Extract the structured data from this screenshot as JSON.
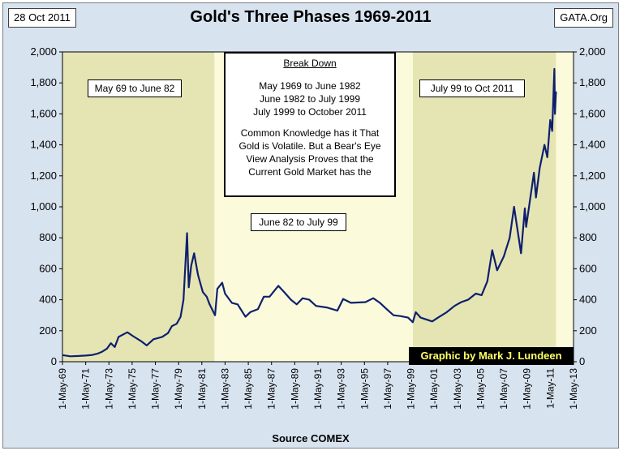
{
  "header": {
    "date": "28 Oct 2011",
    "source_site": "GATA.Org"
  },
  "footer": {
    "source": "Source COMEX"
  },
  "annotations": {
    "phase1": "May 69 to June 82",
    "phase2": "June 82 to July 99",
    "phase3": "July 99 to Oct 2011",
    "box_title": "Break Down",
    "box_lines": [
      "May 1969 to June 1982",
      "June 1982 to July 1999",
      "July 1999 to October 2011"
    ],
    "box_text": [
      "Common Knowledge has it That",
      "Gold is Volatile.  But a Bear's Eye",
      "View Analysis Proves that the",
      "Current Gold Market has the"
    ],
    "credit": "Graphic by Mark J. Lundeen"
  },
  "colors": {
    "plot_bg": "#fbfbdc",
    "shade": "#e5e5b4",
    "line": "#0f1f6e",
    "frame_bg": "#d8e3f0"
  },
  "chart_data": {
    "type": "line",
    "title": "Gold's Three Phases 1969-2011",
    "xlabel": "Source COMEX",
    "ylabel": "",
    "x_tick_labels": [
      "1-May-69",
      "1-May-71",
      "1-May-73",
      "1-May-75",
      "1-May-77",
      "1-May-79",
      "1-May-81",
      "1-May-83",
      "1-May-85",
      "1-May-87",
      "1-May-89",
      "1-May-91",
      "1-May-93",
      "1-May-95",
      "1-May-97",
      "1-May-99",
      "1-May-01",
      "1-May-03",
      "1-May-05",
      "1-May-07",
      "1-May-09",
      "1-May-11",
      "1-May-13"
    ],
    "y_tick_labels": [
      "0",
      "200",
      "400",
      "600",
      "800",
      "1,000",
      "1,200",
      "1,400",
      "1,600",
      "1,800",
      "2,000"
    ],
    "ylim": [
      0,
      2000
    ],
    "xlim": [
      "1969-05-01",
      "2013-05-01"
    ],
    "grid": false,
    "shaded_phases": [
      {
        "from": "1969-05-01",
        "to": "1982-06-01"
      },
      {
        "from": "1999-07-01",
        "to": "2011-10-28"
      }
    ],
    "series": [
      {
        "values": [
          [
            "1969-05-01",
            43
          ],
          [
            "1970-01-01",
            35
          ],
          [
            "1970-10-01",
            37
          ],
          [
            "1971-05-01",
            40
          ],
          [
            "1971-12-01",
            44
          ],
          [
            "1972-05-01",
            52
          ],
          [
            "1972-10-01",
            65
          ],
          [
            "1973-03-01",
            85
          ],
          [
            "1973-07-01",
            120
          ],
          [
            "1973-11-01",
            95
          ],
          [
            "1974-03-01",
            160
          ],
          [
            "1974-12-01",
            190
          ],
          [
            "1975-06-01",
            165
          ],
          [
            "1976-03-01",
            130
          ],
          [
            "1976-08-01",
            105
          ],
          [
            "1977-03-01",
            145
          ],
          [
            "1977-12-01",
            160
          ],
          [
            "1978-06-01",
            185
          ],
          [
            "1978-10-01",
            230
          ],
          [
            "1979-03-01",
            245
          ],
          [
            "1979-07-01",
            290
          ],
          [
            "1979-10-01",
            400
          ],
          [
            "1980-01-21",
            830
          ],
          [
            "1980-03-15",
            480
          ],
          [
            "1980-06-01",
            620
          ],
          [
            "1980-09-01",
            700
          ],
          [
            "1981-01-01",
            560
          ],
          [
            "1981-06-01",
            450
          ],
          [
            "1981-10-01",
            420
          ],
          [
            "1982-01-01",
            370
          ],
          [
            "1982-06-21",
            300
          ],
          [
            "1982-09-01",
            470
          ],
          [
            "1983-02-01",
            510
          ],
          [
            "1983-05-01",
            440
          ],
          [
            "1983-12-01",
            380
          ],
          [
            "1984-06-01",
            370
          ],
          [
            "1985-02-01",
            290
          ],
          [
            "1985-07-01",
            320
          ],
          [
            "1986-03-01",
            340
          ],
          [
            "1986-09-01",
            420
          ],
          [
            "1987-03-01",
            420
          ],
          [
            "1987-12-01",
            490
          ],
          [
            "1988-06-01",
            450
          ],
          [
            "1989-01-01",
            400
          ],
          [
            "1989-07-01",
            370
          ],
          [
            "1990-01-01",
            410
          ],
          [
            "1990-08-01",
            400
          ],
          [
            "1991-03-01",
            360
          ],
          [
            "1992-02-01",
            350
          ],
          [
            "1993-01-01",
            330
          ],
          [
            "1993-07-01",
            405
          ],
          [
            "1994-03-01",
            380
          ],
          [
            "1995-06-01",
            385
          ],
          [
            "1996-02-01",
            410
          ],
          [
            "1996-09-01",
            380
          ],
          [
            "1997-03-01",
            345
          ],
          [
            "1997-11-01",
            300
          ],
          [
            "1998-06-01",
            295
          ],
          [
            "1999-02-01",
            285
          ],
          [
            "1999-07-01",
            255
          ],
          [
            "1999-10-01",
            320
          ],
          [
            "2000-03-01",
            285
          ],
          [
            "2001-03-01",
            260
          ],
          [
            "2001-09-01",
            285
          ],
          [
            "2002-06-01",
            320
          ],
          [
            "2003-02-01",
            360
          ],
          [
            "2003-09-01",
            385
          ],
          [
            "2004-04-01",
            400
          ],
          [
            "2004-12-01",
            440
          ],
          [
            "2005-06-01",
            430
          ],
          [
            "2005-12-01",
            520
          ],
          [
            "2006-05-01",
            720
          ],
          [
            "2006-10-01",
            590
          ],
          [
            "2007-05-01",
            680
          ],
          [
            "2007-11-01",
            800
          ],
          [
            "2008-03-17",
            1000
          ],
          [
            "2008-10-24",
            700
          ],
          [
            "2009-02-20",
            990
          ],
          [
            "2009-04-01",
            870
          ],
          [
            "2009-12-03",
            1220
          ],
          [
            "2010-02-05",
            1060
          ],
          [
            "2010-06-01",
            1250
          ],
          [
            "2010-11-01",
            1400
          ],
          [
            "2011-01-28",
            1320
          ],
          [
            "2011-05-01",
            1560
          ],
          [
            "2011-07-01",
            1490
          ],
          [
            "2011-09-06",
            1890
          ],
          [
            "2011-09-26",
            1600
          ],
          [
            "2011-10-28",
            1745
          ]
        ]
      }
    ]
  }
}
